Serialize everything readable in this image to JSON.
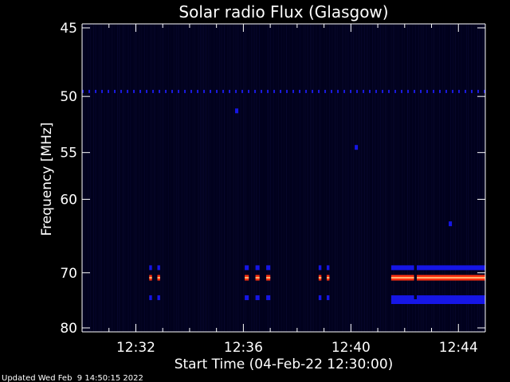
{
  "chart_data": {
    "type": "heatmap",
    "title": "Solar radio Flux (Glasgow)",
    "xlabel": "Start Time (04-Feb-22 12:30:00)",
    "ylabel": "Frequency [MHz]",
    "footer": "Updated Wed Feb  9 14:50:15 2022",
    "x_range_minutes": [
      0.0,
      15.0
    ],
    "x_ticks": [
      {
        "label": "12:32",
        "minute": 2
      },
      {
        "label": "12:36",
        "minute": 6
      },
      {
        "label": "12:40",
        "minute": 10
      },
      {
        "label": "12:44",
        "minute": 14
      }
    ],
    "y_scale": "reciprocal",
    "y_range_mhz": [
      45,
      80
    ],
    "y_ticks": [
      {
        "label": "45",
        "mhz": 45
      },
      {
        "label": "50",
        "mhz": 50
      },
      {
        "label": "55",
        "mhz": 55
      },
      {
        "label": "60",
        "mhz": 60
      },
      {
        "label": "70",
        "mhz": 70
      },
      {
        "label": "80",
        "mhz": 80
      }
    ],
    "background_color": "#000000",
    "plot_background_color": "#00001a",
    "colors": {
      "blue": "#1616e6",
      "red": "#ff3010",
      "orange": "#ffb070"
    },
    "rfi_bands": [
      {
        "mhz": 49.6,
        "segments": [
          [
            0.0,
            15.0
          ]
        ],
        "dashed": true,
        "color": "#1a1ae0"
      },
      {
        "mhz": 69.2,
        "segments": [
          [
            2.5,
            2.6
          ],
          [
            2.8,
            2.9
          ],
          [
            6.05,
            6.2
          ],
          [
            6.45,
            6.6
          ],
          [
            6.85,
            7.0
          ],
          [
            8.8,
            8.9
          ],
          [
            9.1,
            9.2
          ],
          [
            11.5,
            12.35
          ],
          [
            12.45,
            15.0
          ]
        ],
        "color": "#1616e6"
      },
      {
        "mhz": 70.8,
        "segments": [
          [
            2.5,
            2.6
          ],
          [
            2.8,
            2.9
          ],
          [
            6.05,
            6.2
          ],
          [
            6.45,
            6.6
          ],
          [
            6.85,
            7.0
          ],
          [
            8.8,
            8.9
          ],
          [
            9.1,
            9.2
          ],
          [
            11.5,
            12.35
          ],
          [
            12.45,
            15.0
          ]
        ],
        "color": "#ff3010",
        "core_color": "#ffb070"
      },
      {
        "mhz": 74.2,
        "segments": [
          [
            2.5,
            2.6
          ],
          [
            2.8,
            2.9
          ],
          [
            6.05,
            6.2
          ],
          [
            6.45,
            6.6
          ],
          [
            6.85,
            7.0
          ],
          [
            8.8,
            8.9
          ],
          [
            9.1,
            9.2
          ],
          [
            11.5,
            12.35
          ],
          [
            12.45,
            15.0
          ]
        ],
        "color": "#1616e6"
      },
      {
        "mhz": 74.9,
        "segments": [
          [
            11.5,
            15.0
          ]
        ],
        "color": "#1616e6"
      }
    ],
    "spots": [
      {
        "minute": 5.75,
        "mhz": 51.2
      },
      {
        "minute": 10.2,
        "mhz": 54.5
      },
      {
        "minute": 13.7,
        "mhz": 63.0
      }
    ]
  }
}
